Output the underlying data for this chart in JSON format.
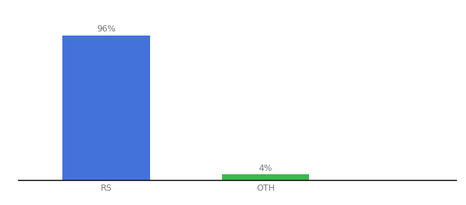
{
  "categories": [
    "RS",
    "OTH"
  ],
  "values": [
    96,
    4
  ],
  "bar_colors": [
    "#4472db",
    "#3cb84a"
  ],
  "labels": [
    "96%",
    "4%"
  ],
  "background_color": "#ffffff",
  "bar_width": 0.55,
  "x_positions": [
    0,
    1
  ],
  "xlim": [
    -0.55,
    2.2
  ],
  "ylim": [
    0,
    106
  ],
  "label_fontsize": 9,
  "tick_fontsize": 9,
  "tick_color": "#777777",
  "label_color": "#777777"
}
